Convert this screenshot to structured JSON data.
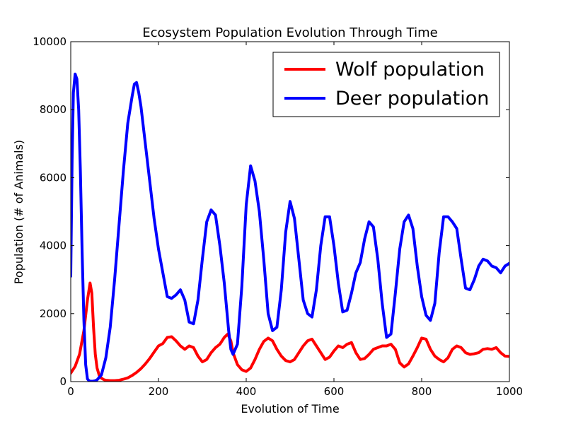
{
  "chart_data": {
    "type": "line",
    "title": "Ecosystem Population Evolution Through Time",
    "xlabel": "Evolution of Time",
    "ylabel": "Population (# of Animals)",
    "xlim": [
      0,
      1000
    ],
    "ylim": [
      0,
      10000
    ],
    "xticks": [
      0,
      200,
      400,
      600,
      800,
      1000
    ],
    "yticks": [
      0,
      2000,
      4000,
      6000,
      8000,
      10000
    ],
    "grid": false,
    "legend_position": "top-right",
    "series": [
      {
        "name": "Wolf population",
        "color": "#ff0000",
        "x": [
          0,
          10,
          20,
          30,
          38,
          44,
          48,
          52,
          56,
          60,
          65,
          70,
          75,
          80,
          90,
          100,
          110,
          120,
          130,
          140,
          150,
          160,
          170,
          180,
          190,
          200,
          210,
          220,
          230,
          240,
          250,
          260,
          270,
          280,
          290,
          300,
          310,
          320,
          330,
          340,
          350,
          358,
          365,
          370,
          380,
          390,
          400,
          410,
          420,
          430,
          440,
          450,
          460,
          470,
          480,
          490,
          500,
          510,
          520,
          530,
          540,
          550,
          560,
          570,
          580,
          590,
          600,
          610,
          620,
          630,
          640,
          650,
          660,
          670,
          680,
          690,
          700,
          710,
          720,
          730,
          740,
          750,
          760,
          770,
          780,
          790,
          800,
          810,
          820,
          830,
          840,
          850,
          860,
          870,
          880,
          890,
          900,
          910,
          920,
          930,
          940,
          950,
          960,
          970,
          980,
          990,
          1000
        ],
        "y": [
          250,
          450,
          800,
          1500,
          2400,
          2900,
          2600,
          1600,
          800,
          400,
          180,
          100,
          60,
          40,
          30,
          30,
          40,
          70,
          110,
          180,
          270,
          380,
          520,
          680,
          870,
          1050,
          1120,
          1300,
          1320,
          1200,
          1050,
          950,
          1050,
          1000,
          750,
          580,
          650,
          850,
          1000,
          1100,
          1300,
          1400,
          1200,
          850,
          500,
          350,
          300,
          400,
          650,
          950,
          1180,
          1280,
          1200,
          950,
          750,
          620,
          580,
          650,
          850,
          1050,
          1200,
          1250,
          1050,
          850,
          650,
          720,
          900,
          1050,
          1000,
          1100,
          1150,
          850,
          650,
          680,
          800,
          950,
          1000,
          1050,
          1050,
          1100,
          950,
          550,
          430,
          520,
          750,
          1000,
          1280,
          1250,
          950,
          750,
          650,
          580,
          700,
          950,
          1050,
          1000,
          850,
          800,
          820,
          850,
          950,
          970,
          950,
          1000,
          850,
          750,
          740
        ]
      },
      {
        "name": "Deer population",
        "color": "#0000ff",
        "x": [
          0,
          3,
          6,
          10,
          14,
          18,
          22,
          26,
          30,
          34,
          38,
          42,
          46,
          50,
          55,
          60,
          70,
          80,
          90,
          100,
          110,
          120,
          130,
          140,
          145,
          150,
          155,
          160,
          170,
          180,
          190,
          200,
          210,
          220,
          230,
          240,
          250,
          260,
          270,
          280,
          290,
          300,
          310,
          320,
          330,
          340,
          350,
          360,
          365,
          370,
          380,
          390,
          400,
          410,
          420,
          430,
          440,
          450,
          460,
          470,
          480,
          490,
          500,
          510,
          520,
          530,
          540,
          550,
          560,
          570,
          580,
          590,
          600,
          610,
          620,
          630,
          640,
          650,
          660,
          670,
          680,
          690,
          700,
          710,
          720,
          730,
          740,
          750,
          760,
          770,
          780,
          790,
          800,
          810,
          820,
          830,
          840,
          850,
          860,
          870,
          880,
          890,
          900,
          910,
          920,
          930,
          940,
          950,
          960,
          970,
          980,
          990,
          1000
        ],
        "y": [
          3100,
          6500,
          8500,
          9050,
          8900,
          8000,
          6200,
          3800,
          1800,
          500,
          80,
          20,
          10,
          10,
          20,
          50,
          200,
          700,
          1600,
          3000,
          4600,
          6200,
          7600,
          8400,
          8750,
          8800,
          8500,
          8100,
          7000,
          5900,
          4800,
          3900,
          3200,
          2500,
          2450,
          2550,
          2700,
          2400,
          1750,
          1700,
          2400,
          3600,
          4700,
          5050,
          4900,
          4000,
          2900,
          1500,
          950,
          800,
          1100,
          2800,
          5200,
          6350,
          5900,
          5000,
          3600,
          2000,
          1500,
          1600,
          2700,
          4400,
          5300,
          4800,
          3600,
          2400,
          2000,
          1900,
          2700,
          4000,
          4850,
          4850,
          4000,
          2900,
          2050,
          2100,
          2600,
          3200,
          3500,
          4200,
          4700,
          4550,
          3600,
          2300,
          1300,
          1400,
          2600,
          3900,
          4700,
          4900,
          4500,
          3400,
          2500,
          1950,
          1800,
          2300,
          3800,
          4850,
          4850,
          4700,
          4500,
          3600,
          2750,
          2700,
          3000,
          3400,
          3600,
          3550,
          3400,
          3350,
          3200,
          3400,
          3480
        ]
      }
    ]
  }
}
